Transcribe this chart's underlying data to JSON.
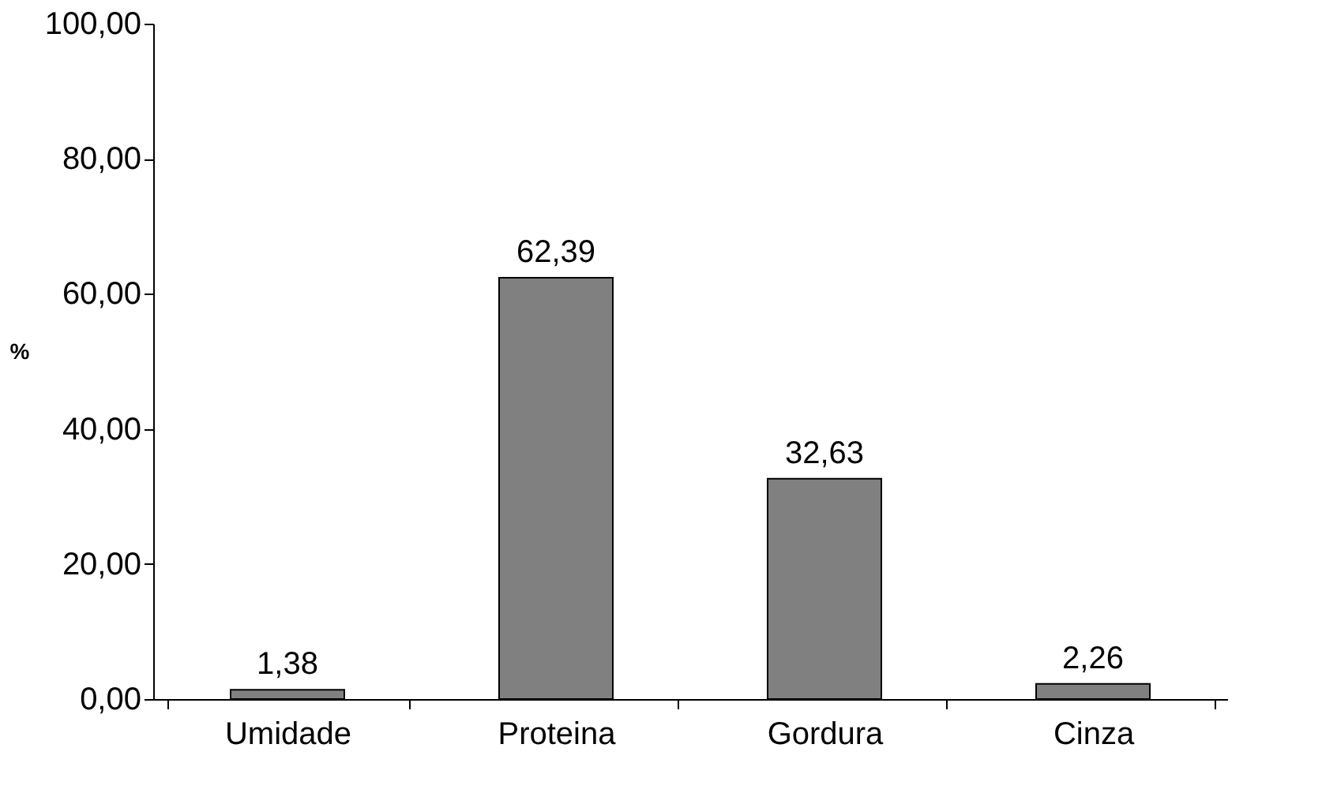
{
  "chart_data": {
    "type": "bar",
    "ylabel": "%",
    "categories": [
      "Umidade",
      "Proteina",
      "Gordura",
      "Cinza"
    ],
    "values": [
      1.38,
      62.39,
      32.63,
      2.26
    ],
    "value_labels": [
      "1,38",
      "62,39",
      "32,63",
      "2,26"
    ],
    "color": "#808080",
    "ylim": [
      0,
      100
    ],
    "yticks": [
      {
        "value": 0,
        "label": "0,00"
      },
      {
        "value": 20,
        "label": "20,00"
      },
      {
        "value": 40,
        "label": "40,00"
      },
      {
        "value": 60,
        "label": "60,00"
      },
      {
        "value": 80,
        "label": "80,00"
      },
      {
        "value": 100,
        "label": "100,00"
      }
    ],
    "grid": false
  }
}
